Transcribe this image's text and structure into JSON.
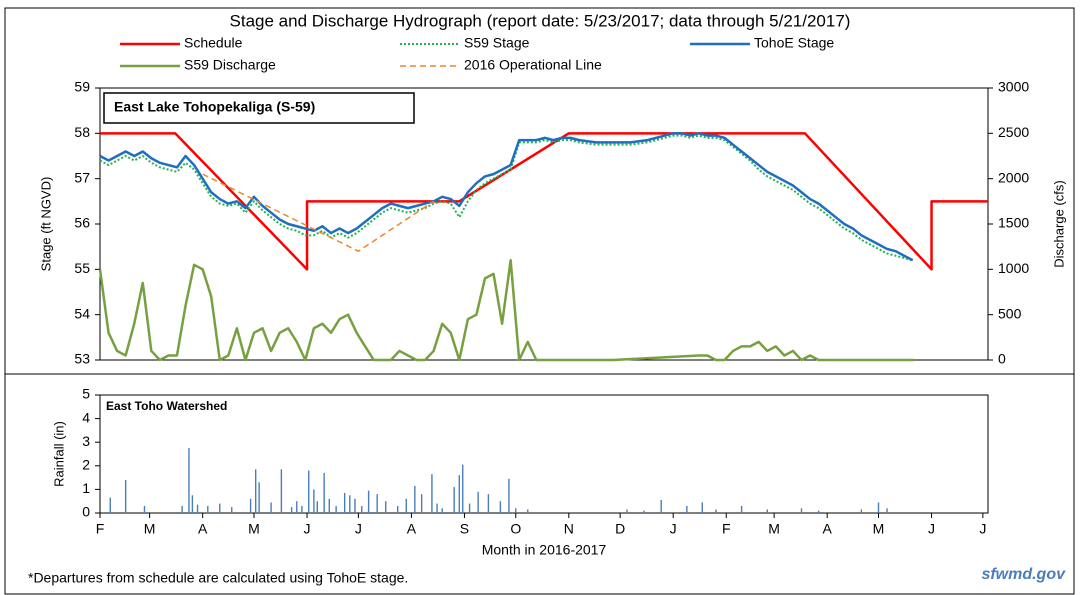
{
  "chart_data": [
    {
      "type": "line",
      "title": "Stage and Discharge Hydrograph (report date: 5/23/2017; data through 5/21/2017)",
      "annotation": "East Lake Tohopekaliga (S-59)",
      "ylabel": "Stage (ft NGVD)",
      "y2label": "Discharge (cfs)",
      "xlim": [
        0,
        519
      ],
      "ylim": [
        53,
        59
      ],
      "yticks": [
        53,
        54,
        55,
        56,
        57,
        58,
        59
      ],
      "y2lim": [
        0,
        3000
      ],
      "y2ticks": [
        0,
        500,
        1000,
        1500,
        2000,
        2500,
        3000
      ],
      "grid": false,
      "series": [
        {
          "name": "Schedule",
          "color": "#ff0000",
          "dash": "solid",
          "width": 2.5,
          "x": [
            0,
            44,
            121,
            121,
            210,
            274,
            412,
            486,
            486,
            519
          ],
          "values": [
            58,
            58,
            55,
            56.5,
            56.5,
            58,
            58,
            55,
            56.5,
            56.5
          ]
        },
        {
          "name": "S59 Stage",
          "color": "#22b14c",
          "dash": "dotted",
          "width": 2,
          "x": [
            0,
            5,
            10,
            15,
            20,
            25,
            30,
            35,
            40,
            45,
            50,
            55,
            60,
            65,
            70,
            75,
            80,
            85,
            90,
            95,
            100,
            105,
            110,
            115,
            120,
            125,
            130,
            135,
            140,
            145,
            150,
            155,
            160,
            165,
            170,
            175,
            180,
            185,
            190,
            195,
            200,
            205,
            210,
            215,
            220,
            225,
            230,
            235,
            240,
            245,
            250,
            255,
            260,
            265,
            270,
            275,
            280,
            290,
            300,
            310,
            320,
            330,
            335,
            340,
            345,
            350,
            355,
            360,
            365,
            370,
            375,
            380,
            385,
            390,
            395,
            400,
            405,
            410,
            415,
            420,
            425,
            430,
            435,
            440,
            445,
            450,
            455,
            460,
            465,
            470,
            475
          ],
          "values": [
            57.4,
            57.3,
            57.4,
            57.5,
            57.4,
            57.5,
            57.35,
            57.25,
            57.2,
            57.15,
            57.35,
            57.2,
            56.9,
            56.6,
            56.45,
            56.4,
            56.45,
            56.25,
            56.5,
            56.3,
            56.15,
            56.0,
            55.9,
            55.85,
            55.75,
            55.75,
            55.85,
            55.7,
            55.8,
            55.7,
            55.8,
            55.95,
            56.1,
            56.25,
            56.35,
            56.3,
            56.25,
            56.3,
            56.35,
            56.45,
            56.5,
            56.45,
            56.15,
            56.5,
            56.75,
            56.9,
            57.0,
            57.1,
            57.2,
            57.8,
            57.8,
            57.8,
            57.85,
            57.8,
            57.85,
            57.85,
            57.8,
            57.75,
            57.75,
            57.75,
            57.8,
            57.9,
            57.95,
            57.95,
            57.9,
            57.95,
            57.9,
            57.9,
            57.85,
            57.7,
            57.55,
            57.4,
            57.2,
            57.05,
            56.95,
            56.85,
            56.75,
            56.6,
            56.45,
            56.35,
            56.2,
            56.05,
            55.9,
            55.8,
            55.65,
            55.55,
            55.45,
            55.35,
            55.3,
            55.25,
            55.2
          ]
        },
        {
          "name": "TohoE Stage",
          "color": "#1f6fc0",
          "dash": "solid",
          "width": 2.5,
          "x": [
            0,
            5,
            10,
            15,
            20,
            25,
            30,
            35,
            40,
            45,
            50,
            55,
            60,
            65,
            70,
            75,
            80,
            85,
            90,
            95,
            100,
            105,
            110,
            115,
            120,
            125,
            130,
            135,
            140,
            145,
            150,
            155,
            160,
            165,
            170,
            175,
            180,
            185,
            190,
            195,
            200,
            205,
            210,
            215,
            220,
            225,
            230,
            235,
            240,
            245,
            250,
            255,
            260,
            265,
            270,
            275,
            280,
            290,
            300,
            310,
            320,
            330,
            335,
            340,
            345,
            350,
            355,
            360,
            365,
            370,
            375,
            380,
            385,
            390,
            395,
            400,
            405,
            410,
            415,
            420,
            425,
            430,
            435,
            440,
            445,
            450,
            455,
            460,
            465,
            470,
            475
          ],
          "values": [
            57.5,
            57.4,
            57.5,
            57.6,
            57.5,
            57.6,
            57.45,
            57.35,
            57.3,
            57.25,
            57.5,
            57.3,
            57.0,
            56.7,
            56.55,
            56.45,
            56.5,
            56.35,
            56.6,
            56.4,
            56.25,
            56.1,
            56.0,
            55.95,
            55.9,
            55.85,
            55.95,
            55.8,
            55.9,
            55.8,
            55.9,
            56.05,
            56.2,
            56.35,
            56.45,
            56.4,
            56.35,
            56.4,
            56.45,
            56.5,
            56.6,
            56.55,
            56.4,
            56.7,
            56.9,
            57.05,
            57.1,
            57.2,
            57.3,
            57.85,
            57.85,
            57.85,
            57.9,
            57.85,
            57.9,
            57.9,
            57.85,
            57.8,
            57.8,
            57.8,
            57.85,
            57.95,
            58.0,
            58.0,
            57.95,
            58.0,
            57.95,
            57.95,
            57.9,
            57.75,
            57.6,
            57.45,
            57.3,
            57.15,
            57.05,
            56.95,
            56.85,
            56.7,
            56.55,
            56.45,
            56.3,
            56.15,
            56.0,
            55.9,
            55.75,
            55.65,
            55.55,
            55.45,
            55.4,
            55.3,
            55.2
          ]
        },
        {
          "name": "S59 Discharge",
          "color": "#77a040",
          "dash": "solid",
          "width": 2.5,
          "axis": "y2",
          "x": [
            0,
            5,
            10,
            15,
            20,
            25,
            30,
            35,
            40,
            45,
            50,
            55,
            60,
            65,
            70,
            75,
            80,
            85,
            90,
            95,
            100,
            105,
            110,
            115,
            120,
            125,
            130,
            135,
            140,
            145,
            150,
            155,
            160,
            165,
            170,
            175,
            180,
            185,
            190,
            195,
            200,
            205,
            210,
            215,
            220,
            225,
            230,
            235,
            240,
            245,
            250,
            255,
            260,
            300,
            350,
            355,
            360,
            365,
            370,
            375,
            380,
            385,
            390,
            395,
            400,
            405,
            410,
            415,
            420,
            476
          ],
          "values": [
            1000,
            300,
            100,
            50,
            400,
            850,
            100,
            0,
            50,
            50,
            600,
            1050,
            1000,
            700,
            0,
            50,
            350,
            0,
            300,
            350,
            100,
            300,
            350,
            200,
            0,
            350,
            400,
            300,
            450,
            500,
            300,
            150,
            0,
            0,
            0,
            100,
            50,
            0,
            0,
            100,
            400,
            300,
            0,
            450,
            500,
            900,
            950,
            400,
            1100,
            0,
            200,
            0,
            0,
            0,
            50,
            50,
            0,
            0,
            100,
            150,
            150,
            200,
            100,
            150,
            50,
            100,
            0,
            50,
            0,
            0
          ]
        },
        {
          "name": "2016 Operational Line",
          "color": "#e6892e",
          "dash": "dashed",
          "width": 1.5,
          "x": [
            60,
            151,
            195
          ],
          "values": [
            57.1,
            55.4,
            56.5
          ]
        }
      ]
    },
    {
      "type": "bar",
      "annotation": "East Toho Watershed",
      "ylabel": "Rainfall (in)",
      "xlabel": "Month in 2016-2017",
      "xlim": [
        0,
        519
      ],
      "xticks": [
        {
          "value": 0,
          "label": "F"
        },
        {
          "value": 29,
          "label": "M"
        },
        {
          "value": 60,
          "label": "A"
        },
        {
          "value": 90,
          "label": "M"
        },
        {
          "value": 121,
          "label": "J"
        },
        {
          "value": 151,
          "label": "J"
        },
        {
          "value": 182,
          "label": "A"
        },
        {
          "value": 213,
          "label": "S"
        },
        {
          "value": 243,
          "label": "O"
        },
        {
          "value": 274,
          "label": "N"
        },
        {
          "value": 304,
          "label": "D"
        },
        {
          "value": 335,
          "label": "J"
        },
        {
          "value": 366,
          "label": "F"
        },
        {
          "value": 394,
          "label": "M"
        },
        {
          "value": 425,
          "label": "A"
        },
        {
          "value": 455,
          "label": "M"
        },
        {
          "value": 486,
          "label": "J"
        },
        {
          "value": 516,
          "label": "J"
        }
      ],
      "ylim": [
        0,
        5
      ],
      "yticks": [
        0,
        1,
        2,
        3,
        4,
        5
      ],
      "color": "#4a7ebb",
      "x": [
        6,
        15,
        26,
        48,
        52,
        54,
        57,
        63,
        70,
        77,
        88,
        91,
        93,
        100,
        106,
        112,
        115,
        118,
        122,
        125,
        127,
        131,
        134,
        138,
        143,
        146,
        149,
        153,
        157,
        162,
        167,
        174,
        179,
        184,
        188,
        194,
        197,
        200,
        207,
        210,
        212,
        216,
        221,
        227,
        234,
        239,
        243,
        250,
        308,
        318,
        328,
        343,
        352,
        360,
        375,
        390,
        410,
        420,
        445,
        455,
        460
      ],
      "values": [
        0.65,
        1.4,
        0.3,
        0.3,
        2.75,
        0.75,
        0.35,
        0.3,
        0.4,
        0.25,
        0.6,
        1.85,
        1.3,
        0.45,
        1.85,
        0.25,
        0.5,
        0.3,
        1.8,
        1.0,
        0.5,
        1.7,
        0.6,
        0.3,
        0.85,
        0.75,
        0.6,
        0.3,
        0.95,
        0.8,
        0.5,
        0.3,
        0.6,
        1.15,
        0.8,
        1.65,
        0.4,
        0.2,
        1.1,
        1.6,
        2.05,
        0.4,
        0.9,
        0.8,
        0.5,
        1.45,
        0.2,
        0.15,
        0.15,
        0.1,
        0.55,
        0.3,
        0.45,
        0.15,
        0.3,
        0.15,
        0.2,
        0.1,
        0.15,
        0.45,
        0.2
      ]
    }
  ],
  "footnote": "*Departures from schedule are calculated using TohoE stage.",
  "source": "sfwmd.gov"
}
